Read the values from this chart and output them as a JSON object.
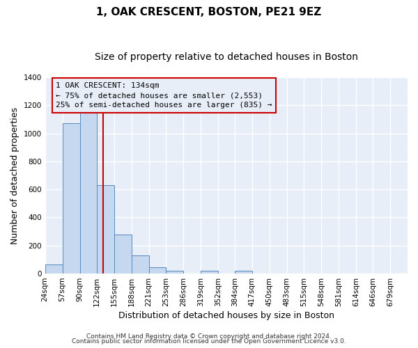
{
  "title_line1": "1, OAK CRESCENT, BOSTON, PE21 9EZ",
  "title_line2": "Size of property relative to detached houses in Boston",
  "xlabel": "Distribution of detached houses by size in Boston",
  "ylabel": "Number of detached properties",
  "bar_left_edges": [
    24,
    57,
    90,
    122,
    155,
    188,
    221,
    253,
    286,
    319,
    352,
    384,
    417,
    450,
    483,
    515,
    548,
    581,
    614,
    646
  ],
  "bar_widths": [
    33,
    33,
    32,
    33,
    33,
    33,
    32,
    33,
    33,
    33,
    32,
    33,
    33,
    33,
    32,
    33,
    33,
    33,
    32,
    33
  ],
  "bar_heights": [
    65,
    1070,
    1160,
    630,
    280,
    130,
    45,
    20,
    0,
    20,
    0,
    20,
    0,
    0,
    0,
    0,
    0,
    0,
    0,
    0
  ],
  "bar_color": "#c5d8ef",
  "bar_edge_color": "#5588bb",
  "vline_x": 134,
  "vline_color": "#cc0000",
  "ylim": [
    0,
    1400
  ],
  "yticks": [
    0,
    200,
    400,
    600,
    800,
    1000,
    1200,
    1400
  ],
  "x_tick_labels": [
    "24sqm",
    "57sqm",
    "90sqm",
    "122sqm",
    "155sqm",
    "188sqm",
    "221sqm",
    "253sqm",
    "286sqm",
    "319sqm",
    "352sqm",
    "384sqm",
    "417sqm",
    "450sqm",
    "483sqm",
    "515sqm",
    "548sqm",
    "581sqm",
    "614sqm",
    "646sqm",
    "679sqm"
  ],
  "x_tick_positions": [
    24,
    57,
    90,
    122,
    155,
    188,
    221,
    253,
    286,
    319,
    352,
    384,
    417,
    450,
    483,
    515,
    548,
    581,
    614,
    646,
    679
  ],
  "annotation_line1": "1 OAK CRESCENT: 134sqm",
  "annotation_line2": "← 75% of detached houses are smaller (2,553)",
  "annotation_line3": "25% of semi-detached houses are larger (835) →",
  "footer_line1": "Contains HM Land Registry data © Crown copyright and database right 2024.",
  "footer_line2": "Contains public sector information licensed under the Open Government Licence v3.0.",
  "fig_bg_color": "#ffffff",
  "plot_bg_color": "#e8eef8",
  "grid_color": "#ffffff",
  "title_fontsize": 11,
  "subtitle_fontsize": 10,
  "axis_label_fontsize": 9,
  "tick_fontsize": 7.5,
  "footer_fontsize": 6.5,
  "annot_fontsize": 8
}
